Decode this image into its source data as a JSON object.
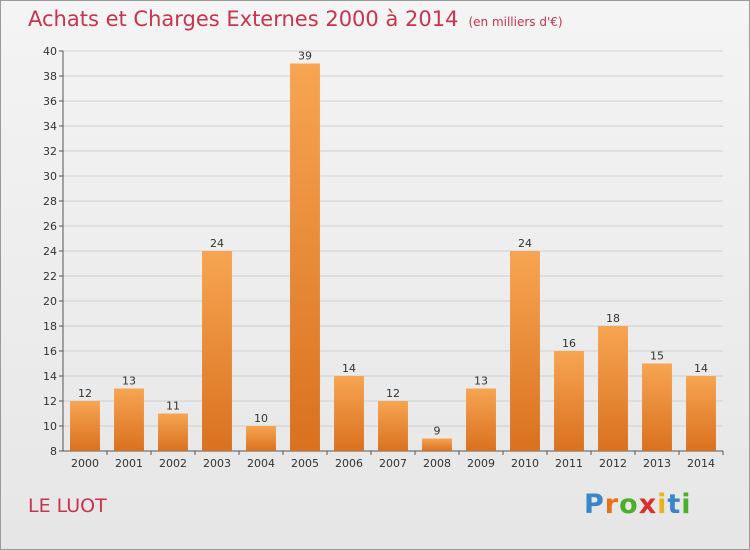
{
  "header": {
    "title": "Achats et Charges Externes 2000 à 2014",
    "subtitle": "(en milliers d'€)"
  },
  "footer": {
    "city": "LE LUOT",
    "brand_letters": [
      "P",
      "r",
      "o",
      "x",
      "i",
      "t",
      "i"
    ],
    "brand_colors": [
      "#3a86c8",
      "#e8721c",
      "#4caf2a",
      "#d6322f",
      "#e8b41c",
      "#3a86c8",
      "#4caf2a"
    ]
  },
  "colors": {
    "title": "#c8344e",
    "bar_light": "#f7a552",
    "bar_dark": "#d9711f",
    "grid": "#d0d0d0"
  },
  "chart_data": {
    "type": "bar",
    "categories": [
      "2000",
      "2001",
      "2002",
      "2003",
      "2004",
      "2005",
      "2006",
      "2007",
      "2008",
      "2009",
      "2010",
      "2011",
      "2012",
      "2013",
      "2014"
    ],
    "values": [
      12,
      13,
      11,
      24,
      10,
      39,
      14,
      12,
      9,
      13,
      24,
      16,
      18,
      15,
      14
    ],
    "ylim": [
      8,
      40
    ],
    "yticks": [
      8,
      10,
      12,
      14,
      16,
      18,
      20,
      22,
      24,
      26,
      28,
      30,
      32,
      34,
      36,
      38,
      40
    ],
    "grid": true,
    "title": "Achats et Charges Externes 2000 à 2014",
    "xlabel": "",
    "ylabel": ""
  }
}
